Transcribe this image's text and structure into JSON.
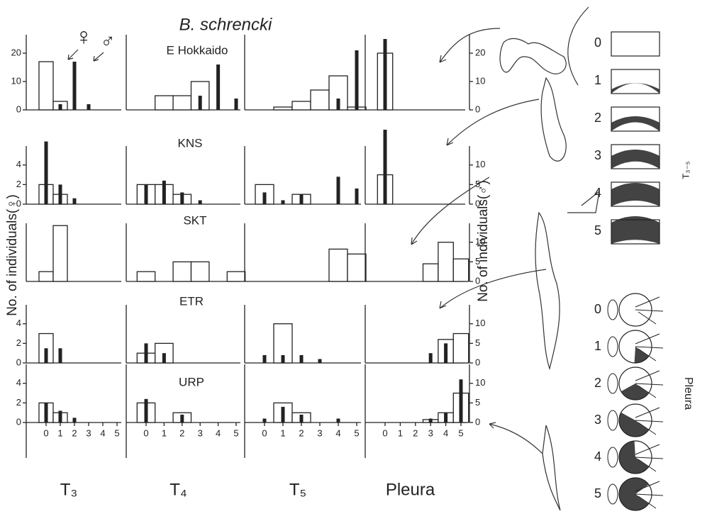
{
  "chart_data": {
    "type": "bar",
    "title": "B. schrencki",
    "ylabel": "No. of individuals(♀)",
    "y2label": "No. of individuals(♂)",
    "categories": [
      "0",
      "1",
      "2",
      "3",
      "4",
      "5"
    ],
    "columns": [
      "T₃",
      "T₄",
      "T₅",
      "Pleura"
    ],
    "series": [
      {
        "name": "♀",
        "color": "#ffffff"
      },
      {
        "name": "♂",
        "color": "#222222",
        "axis": "y2"
      }
    ],
    "rows": [
      {
        "label": "E Hokkaido",
        "ylim": [
          0,
          25
        ],
        "yticks": [
          0,
          10,
          20
        ],
        "y2lim": [
          0,
          25
        ],
        "y2ticks": [
          0,
          10,
          20
        ],
        "panels": [
          [
            [
              17,
              3,
              0,
              0,
              0,
              0
            ],
            [
              0,
              2,
              17,
              2,
              0,
              0
            ]
          ],
          [
            [
              0,
              5,
              5,
              10,
              0,
              0
            ],
            [
              0,
              0,
              0,
              5,
              16,
              4
            ]
          ],
          [
            [
              0,
              1,
              3,
              7,
              12,
              1
            ],
            [
              0,
              0,
              0,
              0,
              4,
              21
            ]
          ],
          [
            [
              20,
              0,
              0,
              0,
              0,
              0
            ],
            [
              25,
              0,
              0,
              0,
              0,
              0
            ]
          ]
        ]
      },
      {
        "label": "KNS",
        "ylim": [
          0,
          5.5
        ],
        "yticks": [
          0,
          2,
          4
        ],
        "y2lim": [
          0,
          13.75
        ],
        "y2ticks": [
          0,
          5,
          10
        ],
        "panels": [
          [
            [
              2,
              1,
              0,
              0,
              0,
              0
            ],
            [
              16,
              5,
              1.5,
              0,
              0,
              0
            ]
          ],
          [
            [
              2,
              2,
              1,
              0,
              0,
              0
            ],
            [
              5,
              6,
              3,
              1,
              0,
              0
            ]
          ],
          [
            [
              2,
              0,
              1,
              0,
              0,
              0
            ],
            [
              3,
              1,
              2.5,
              0,
              7,
              4
            ]
          ],
          [
            [
              3,
              0,
              0,
              0,
              0,
              0
            ],
            [
              19,
              0,
              0,
              0,
              0,
              0
            ]
          ]
        ]
      },
      {
        "label": "SKT",
        "ylim": [
          0,
          5.5
        ],
        "yticks": [],
        "y2lim": [
          0,
          13.75
        ],
        "y2ticks": [
          0,
          5,
          10
        ],
        "panels": [
          [
            [
              1,
              5.7,
              0,
              0,
              0,
              0
            ],
            [
              0,
              0,
              0,
              0,
              0,
              0
            ]
          ],
          [
            [
              1,
              0,
              2,
              2,
              0,
              1
            ],
            [
              0,
              0,
              0,
              0,
              0,
              0
            ]
          ],
          [
            [
              0,
              0,
              0,
              0,
              3.3,
              2.8
            ],
            [
              0,
              0,
              0,
              0,
              0,
              0
            ]
          ],
          [
            [
              0,
              0,
              0,
              1.8,
              4,
              2.3
            ],
            [
              0,
              0,
              0,
              0,
              0,
              0
            ]
          ]
        ]
      },
      {
        "label": "ETR",
        "ylim": [
          0,
          5.5
        ],
        "yticks": [
          0,
          2,
          4
        ],
        "y2lim": [
          0,
          13.75
        ],
        "y2ticks": [
          0,
          5,
          10
        ],
        "panels": [
          [
            [
              3,
              0,
              0,
              0,
              0,
              0
            ],
            [
              3.75,
              3.75,
              0,
              0,
              0,
              0
            ]
          ],
          [
            [
              1,
              2,
              0,
              0,
              0,
              0
            ],
            [
              5,
              2.5,
              0,
              0,
              0,
              0
            ]
          ],
          [
            [
              0,
              4,
              0,
              0,
              0,
              0
            ],
            [
              2,
              2,
              2,
              1,
              0,
              0
            ]
          ],
          [
            [
              0,
              0,
              0,
              0,
              2.4,
              3
            ],
            [
              0,
              0,
              0,
              2.5,
              5,
              0
            ]
          ]
        ]
      },
      {
        "label": "URP",
        "ylim": [
          0,
          5.5
        ],
        "yticks": [
          0,
          2,
          4
        ],
        "y2lim": [
          0,
          13.75
        ],
        "y2ticks": [
          0,
          5,
          10
        ],
        "panels": [
          [
            [
              2,
              1,
              0,
              0,
              0,
              0
            ],
            [
              5,
              3,
              1.2,
              0,
              0,
              0
            ]
          ],
          [
            [
              2,
              0,
              1,
              0,
              0,
              0
            ],
            [
              6,
              0,
              2,
              0,
              0,
              0
            ]
          ],
          [
            [
              0,
              2,
              1,
              0,
              0,
              0
            ],
            [
              1,
              4,
              2,
              0,
              1,
              0
            ]
          ],
          [
            [
              0,
              0,
              0,
              0.3,
              1,
              3
            ],
            [
              0,
              0,
              0,
              1,
              2.5,
              11
            ]
          ]
        ]
      }
    ]
  },
  "key": {
    "stages": [
      "0",
      "1",
      "2",
      "3",
      "4",
      "5"
    ],
    "t_label": "T₃₋₅",
    "pleura_label": "Pleura"
  }
}
